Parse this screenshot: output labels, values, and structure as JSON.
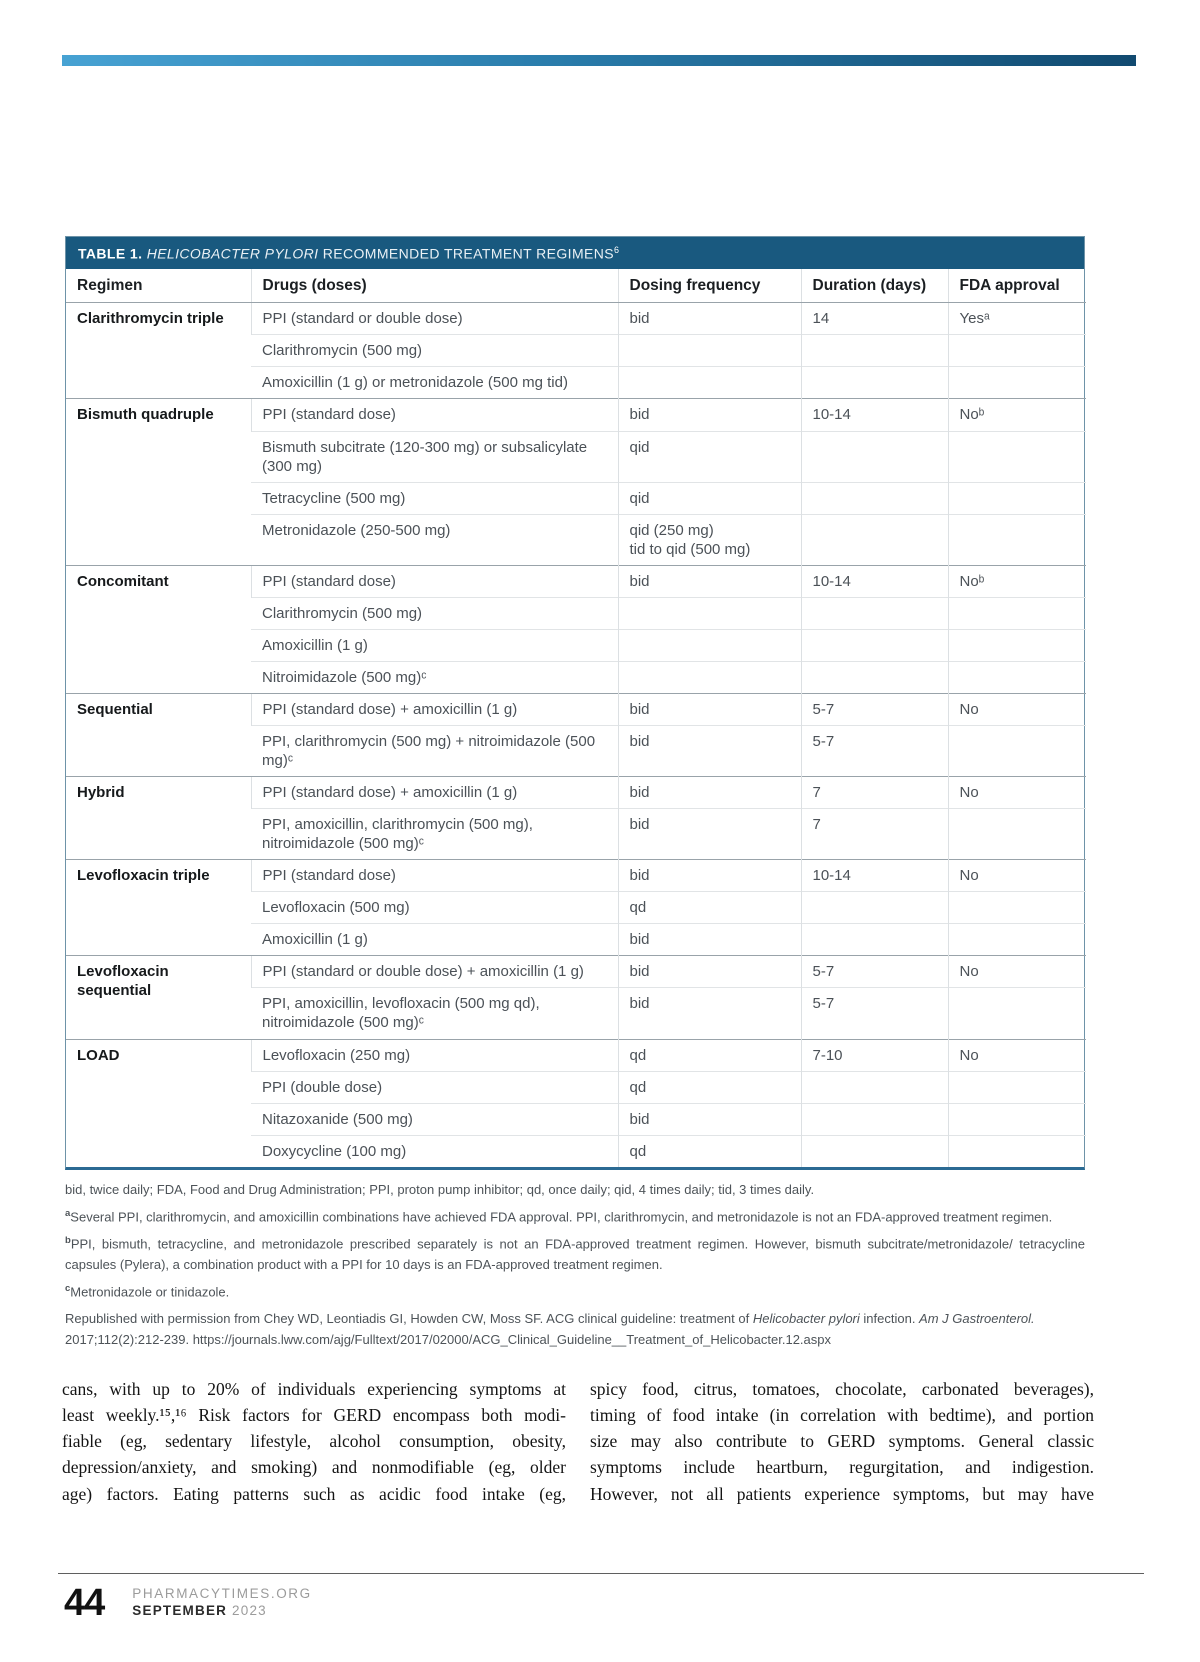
{
  "accent_colors": {
    "bar_left": "#47a2d3",
    "bar_right": "#114a70",
    "table_header_bg": "#19597f"
  },
  "table": {
    "title": {
      "label": "TABLE 1.",
      "italic": "HELICOBACTER PYLORI",
      "rest": "RECOMMENDED TREATMENT REGIMENS",
      "ref": "6"
    },
    "columns": [
      "Regimen",
      "Drugs (doses)",
      "Dosing frequency",
      "Duration (days)",
      "FDA approval"
    ],
    "groups": [
      {
        "regimen": "Clarithromycin triple",
        "rows": [
          {
            "drug": "PPI (standard or double dose)",
            "freq": "bid",
            "duration": "14",
            "fda": "Yesᵃ"
          },
          {
            "drug": "Clarithromycin (500 mg)",
            "freq": "",
            "duration": "",
            "fda": ""
          },
          {
            "drug": "Amoxicillin (1 g) or metronidazole (500 mg tid)",
            "freq": "",
            "duration": "",
            "fda": ""
          }
        ]
      },
      {
        "regimen": "Bismuth quadruple",
        "rows": [
          {
            "drug": "PPI (standard dose)",
            "freq": "bid",
            "duration": "10-14",
            "fda": "Noᵇ"
          },
          {
            "drug": "Bismuth subcitrate (120-300 mg) or subsalicylate (300 mg)",
            "freq": "qid",
            "duration": "",
            "fda": ""
          },
          {
            "drug": "Tetracycline (500 mg)",
            "freq": "qid",
            "duration": "",
            "fda": ""
          },
          {
            "drug": "Metronidazole (250-500 mg)",
            "freq": "qid (250 mg)\ntid to qid (500 mg)",
            "duration": "",
            "fda": ""
          }
        ]
      },
      {
        "regimen": "Concomitant",
        "rows": [
          {
            "drug": "PPI (standard dose)",
            "freq": "bid",
            "duration": "10-14",
            "fda": "Noᵇ"
          },
          {
            "drug": "Clarithromycin (500 mg)",
            "freq": "",
            "duration": "",
            "fda": ""
          },
          {
            "drug": "Amoxicillin (1 g)",
            "freq": "",
            "duration": "",
            "fda": ""
          },
          {
            "drug": "Nitroimidazole (500 mg)ᶜ",
            "freq": "",
            "duration": "",
            "fda": ""
          }
        ]
      },
      {
        "regimen": "Sequential",
        "rows": [
          {
            "drug": "PPI (standard dose) + amoxicillin (1 g)",
            "freq": "bid",
            "duration": "5-7",
            "fda": "No"
          },
          {
            "drug": "PPI, clarithromycin (500 mg) + nitroimidazole (500 mg)ᶜ",
            "freq": "bid",
            "duration": "5-7",
            "fda": ""
          }
        ]
      },
      {
        "regimen": "Hybrid",
        "rows": [
          {
            "drug": "PPI (standard dose) + amoxicillin (1 g)",
            "freq": "bid",
            "duration": "7",
            "fda": "No"
          },
          {
            "drug": "PPI, amoxicillin, clarithromycin (500 mg), nitroimidazole (500 mg)ᶜ",
            "freq": "bid",
            "duration": "7",
            "fda": ""
          }
        ]
      },
      {
        "regimen": "Levofloxacin triple",
        "rows": [
          {
            "drug": "PPI (standard dose)",
            "freq": "bid",
            "duration": "10-14",
            "fda": "No"
          },
          {
            "drug": "Levofloxacin (500 mg)",
            "freq": "qd",
            "duration": "",
            "fda": ""
          },
          {
            "drug": "Amoxicillin (1 g)",
            "freq": "bid",
            "duration": "",
            "fda": ""
          }
        ]
      },
      {
        "regimen": "Levofloxacin sequential",
        "rows": [
          {
            "drug": "PPI (standard or double dose) + amoxicillin (1 g)",
            "freq": "bid",
            "duration": "5-7",
            "fda": "No"
          },
          {
            "drug": "PPI, amoxicillin, levofloxacin (500 mg qd), nitroimidazole (500 mg)ᶜ",
            "freq": "bid",
            "duration": "5-7",
            "fda": ""
          }
        ]
      },
      {
        "regimen": "LOAD",
        "rows": [
          {
            "drug": "Levofloxacin (250 mg)",
            "freq": "qd",
            "duration": "7-10",
            "fda": "No"
          },
          {
            "drug": "PPI (double dose)",
            "freq": "qd",
            "duration": "",
            "fda": ""
          },
          {
            "drug": "Nitazoxanide (500 mg)",
            "freq": "bid",
            "duration": "",
            "fda": ""
          },
          {
            "drug": "Doxycycline (100 mg)",
            "freq": "qd",
            "duration": "",
            "fda": ""
          }
        ]
      }
    ]
  },
  "footnotes": {
    "abbreviations": "bid, twice daily; FDA, Food and Drug Administration; PPI, proton pump inhibitor; qd, once daily; qid, 4 times daily; tid, 3 times daily.",
    "a_marker": "a",
    "a_text": "Several PPI, clarithromycin, and amoxicillin combinations have achieved FDA approval. PPI, clarithromycin, and metronidazole is not an FDA-approved treatment regimen.",
    "b_marker": "b",
    "b_text": "PPI, bismuth, tetracycline, and metronidazole prescribed separately is not an FDA-approved treatment regimen. However, bismuth subcitrate/metronidazole/ tetracycline capsules (Pylera), a combination product with a PPI for 10 days is an FDA-approved treatment regimen.",
    "c_marker": "c",
    "c_text": "Metronidazole or tinidazole.",
    "citation": {
      "part1": "Republished with permission from Chey WD, Leontiadis GI, Howden CW, Moss SF. ACG clinical guideline: treatment of ",
      "italic1": "Helicobacter pylori",
      "part2": " infection. ",
      "italic2": "Am J Gastroenterol.",
      "part3": " 2017;112(2):212-239. https://journals.lww.com/ajg/Fulltext/2017/02000/ACG_Clinical_Guideline__Treatment_of_Helicobacter.12.aspx"
    }
  },
  "body_text": {
    "left_column": "cans, with up to 20% of individuals experiencing symptoms at\nleast weekly.¹⁵,¹⁶ Risk factors for GERD encompass both modi-\nfiable (eg, sedentary lifestyle, alcohol consumption, obesity,\ndepression/anxiety, and smoking) and nonmodifiable (eg, older\nage) factors. Eating patterns such as acidic food intake (eg,",
    "right_column": "spicy food, citrus, tomatoes, chocolate, carbonated beverages),\ntiming of food intake (in correlation with bedtime), and portion\nsize may also contribute to GERD symptoms. General classic\nsymptoms include heartburn, regurgitation, and indigestion.\nHowever, not all patients experience symptoms, but may have"
  },
  "footer": {
    "page_number": "44",
    "site": "PHARMACYTIMES.ORG",
    "month": "SEPTEMBER",
    "year": "2023"
  }
}
